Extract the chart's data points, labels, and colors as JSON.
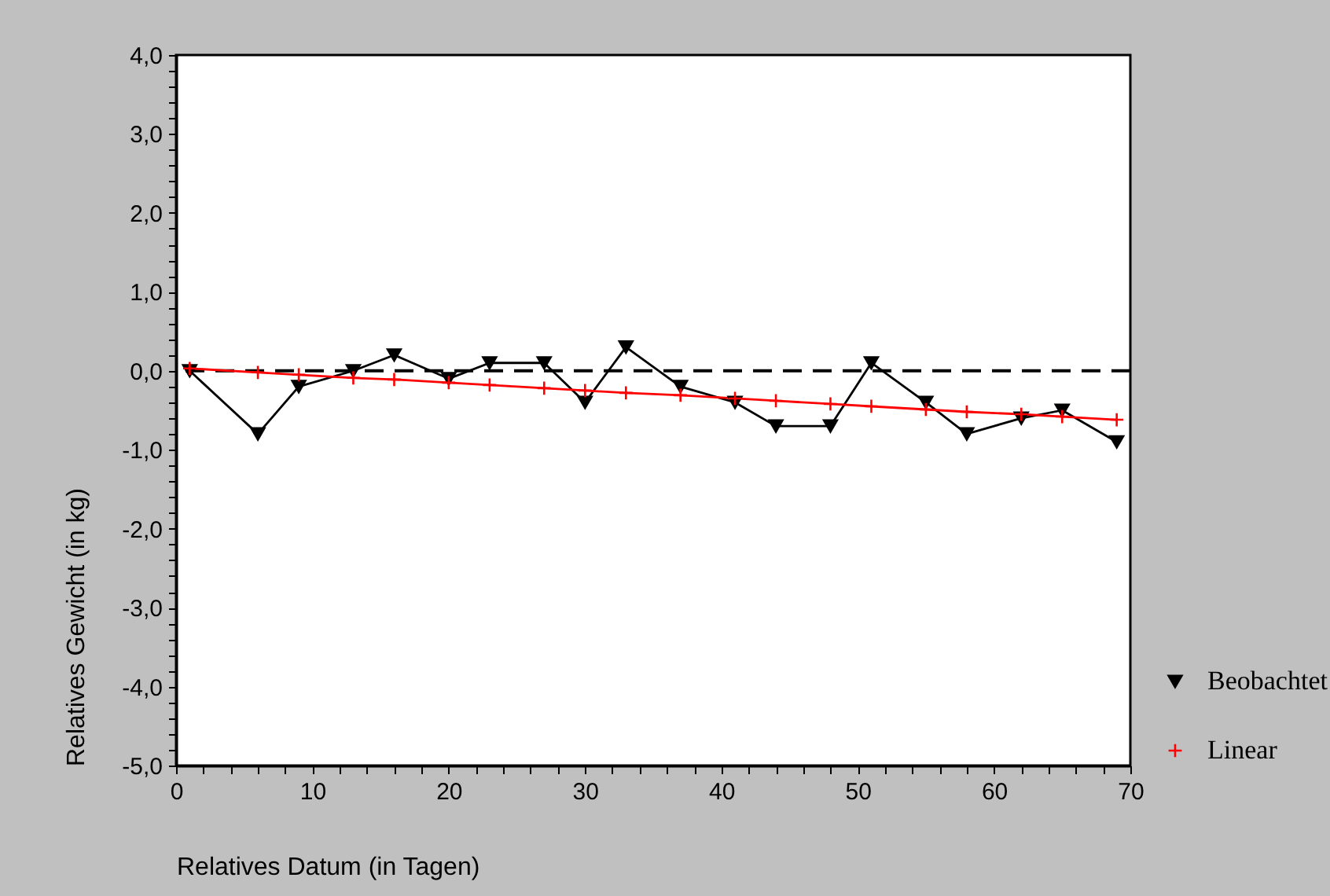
{
  "chart_data": {
    "type": "line",
    "xlabel": "Relatives Datum (in Tagen)",
    "ylabel": "Relatives Gewicht (in kg)",
    "x": [
      1,
      6,
      9,
      13,
      16,
      20,
      23,
      27,
      30,
      33,
      37,
      41,
      44,
      48,
      51,
      55,
      58,
      62,
      65,
      69
    ],
    "series": [
      {
        "name": "Beobachtet",
        "color": "#000000",
        "marker": "triangle",
        "values": [
          0,
          -0.8,
          -0.2,
          0,
          0.2,
          -0.1,
          0.1,
          0.1,
          -0.4,
          0.3,
          -0.2,
          -0.4,
          -0.7,
          -0.7,
          0.1,
          -0.4,
          -0.8,
          -0.6,
          -0.5,
          -0.9
        ]
      },
      {
        "name": "Linear",
        "color": "#ff0000",
        "marker": "cross",
        "values": [
          0.03,
          -0.02,
          -0.05,
          -0.09,
          -0.11,
          -0.15,
          -0.18,
          -0.22,
          -0.25,
          -0.28,
          -0.31,
          -0.35,
          -0.38,
          -0.42,
          -0.45,
          -0.49,
          -0.52,
          -0.55,
          -0.58,
          -0.62
        ]
      }
    ],
    "xlim": [
      0,
      70
    ],
    "ylim": [
      -5,
      4
    ],
    "xticks": [
      0,
      {
        "value": 2,
        "label": null
      },
      {
        "value": 4,
        "label": null
      },
      {
        "value": 6,
        "label": null
      },
      {
        "value": 8,
        "label": null
      },
      10,
      {
        "value": 12,
        "label": null
      },
      {
        "value": 14,
        "label": null
      },
      {
        "value": 16,
        "label": null
      },
      {
        "value": 18,
        "label": null
      },
      20,
      {
        "value": 22,
        "label": null
      },
      {
        "value": 24,
        "label": null
      },
      {
        "value": 26,
        "label": null
      },
      {
        "value": 28,
        "label": null
      },
      30,
      {
        "value": 32,
        "label": null
      },
      {
        "value": 34,
        "label": null
      },
      {
        "value": 36,
        "label": null
      },
      {
        "value": 38,
        "label": null
      },
      40,
      {
        "value": 42,
        "label": null
      },
      {
        "value": 44,
        "label": null
      },
      {
        "value": 46,
        "label": null
      },
      {
        "value": 48,
        "label": null
      },
      50,
      {
        "value": 52,
        "label": null
      },
      {
        "value": 54,
        "label": null
      },
      {
        "value": 56,
        "label": null
      },
      {
        "value": 58,
        "label": null
      },
      60,
      {
        "value": 62,
        "label": null
      },
      {
        "value": 64,
        "label": null
      },
      {
        "value": 66,
        "label": null
      },
      {
        "value": 68,
        "label": null
      },
      70
    ],
    "yticks": [
      {
        "value": -5,
        "label": "-5,0"
      },
      {
        "value": -4.8,
        "label": null
      },
      {
        "value": -4.6,
        "label": null
      },
      {
        "value": -4.4,
        "label": null
      },
      {
        "value": -4.2,
        "label": null
      },
      {
        "value": -4,
        "label": "-4,0"
      },
      {
        "value": -3.8,
        "label": null
      },
      {
        "value": -3.6,
        "label": null
      },
      {
        "value": -3.4,
        "label": null
      },
      {
        "value": -3.2,
        "label": null
      },
      {
        "value": -3,
        "label": "-3,0"
      },
      {
        "value": -2.8,
        "label": null
      },
      {
        "value": -2.6,
        "label": null
      },
      {
        "value": -2.4,
        "label": null
      },
      {
        "value": -2.2,
        "label": null
      },
      {
        "value": -2,
        "label": "-2,0"
      },
      {
        "value": -1.8,
        "label": null
      },
      {
        "value": -1.6,
        "label": null
      },
      {
        "value": -1.4,
        "label": null
      },
      {
        "value": -1.2,
        "label": null
      },
      {
        "value": -1,
        "label": "-1,0"
      },
      {
        "value": -0.8,
        "label": null
      },
      {
        "value": -0.6,
        "label": null
      },
      {
        "value": -0.4,
        "label": null
      },
      {
        "value": -0.2,
        "label": null
      },
      {
        "value": 0,
        "label": "0,0"
      },
      {
        "value": 0.2,
        "label": null
      },
      {
        "value": 0.4,
        "label": null
      },
      {
        "value": 0.6,
        "label": null
      },
      {
        "value": 0.8,
        "label": null
      },
      {
        "value": 1,
        "label": "1,0"
      },
      {
        "value": 1.2,
        "label": null
      },
      {
        "value": 1.4,
        "label": null
      },
      {
        "value": 1.6,
        "label": null
      },
      {
        "value": 1.8,
        "label": null
      },
      {
        "value": 2,
        "label": "2,0"
      },
      {
        "value": 2.2,
        "label": null
      },
      {
        "value": 2.4,
        "label": null
      },
      {
        "value": 2.6,
        "label": null
      },
      {
        "value": 2.8,
        "label": null
      },
      {
        "value": 3,
        "label": "3,0"
      },
      {
        "value": 3.2,
        "label": null
      },
      {
        "value": 3.4,
        "label": null
      },
      {
        "value": 3.6,
        "label": null
      },
      {
        "value": 3.8,
        "label": null
      },
      {
        "value": 4,
        "label": "4,0"
      }
    ],
    "ref_lines": [
      {
        "axis": "y",
        "value": 0,
        "color": "#000000",
        "line_style": "dashed"
      }
    ],
    "legend": "bottom right",
    "grid": false,
    "line_style": "solid"
  }
}
